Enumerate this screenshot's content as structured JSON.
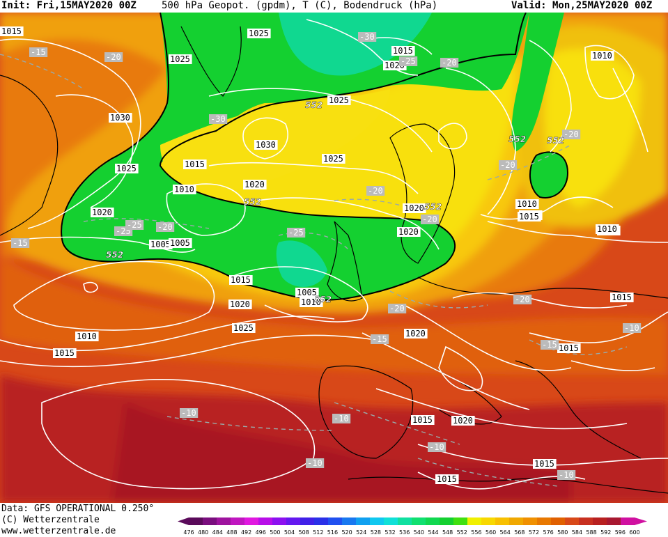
{
  "header": {
    "init": "Init: Fri,15MAY2020 00Z",
    "title": "500 hPa Geopot. (gpdm), T (C), Bodendruck (hPa)",
    "valid": "Valid: Mon,25MAY2020 00Z"
  },
  "footer": {
    "data_source": "Data: GFS OPERATIONAL 0.250°",
    "copyright": "(C) Wetterzentrale",
    "website": "www.wetterzentrale.de"
  },
  "legend": {
    "levels": [
      "476",
      "480",
      "484",
      "488",
      "492",
      "496",
      "500",
      "504",
      "508",
      "512",
      "516",
      "520",
      "524",
      "528",
      "532",
      "536",
      "540",
      "544",
      "548",
      "552",
      "556",
      "560",
      "564",
      "568",
      "572",
      "576",
      "580",
      "584",
      "588",
      "592",
      "596",
      "600"
    ],
    "colors": [
      "#5a0a5a",
      "#7a0e7e",
      "#9e139e",
      "#c016c0",
      "#e018e0",
      "#b80ee8",
      "#8c10f0",
      "#6418f0",
      "#4020e8",
      "#2a30e8",
      "#2050f0",
      "#1878f0",
      "#10a0f0",
      "#10c8f0",
      "#10e0d8",
      "#10e0a0",
      "#10e070",
      "#10d850",
      "#14d030",
      "#40e010",
      "#f0f000",
      "#f8d800",
      "#f8c000",
      "#f0a800",
      "#f09000",
      "#e87800",
      "#e06000",
      "#d84818",
      "#c83020",
      "#b82020",
      "#a81830",
      "#d010a0"
    ]
  },
  "map": {
    "colors": {
      "ocean_south": "#c83020",
      "deep_south": "#a81820",
      "orange": "#e06010",
      "light_orange": "#f09010",
      "yellow_orange": "#f0b010",
      "yellow": "#f8e010",
      "green": "#10d020",
      "teal": "#10d890",
      "contour": "#ffffff",
      "coast": "#000000"
    },
    "pressure_labels": [
      "1025",
      "1015",
      "1015",
      "1020",
      "1025",
      "1030",
      "1025",
      "1030",
      "1025",
      "1015",
      "1010",
      "1020",
      "1010",
      "1020",
      "1015",
      "1005",
      "1005",
      "1015",
      "1020",
      "1025",
      "1010",
      "1015",
      "1005",
      "1010",
      "1020",
      "1020",
      "1020",
      "1015",
      "1010",
      "1015",
      "1020",
      "1015",
      "1025",
      "1015",
      "1015",
      "1020",
      "1010",
      "1015"
    ],
    "temp_labels": [
      "-15",
      "-20",
      "-30",
      "-25",
      "-20",
      "-30",
      "-25",
      "-20",
      "-15",
      "-25",
      "-20",
      "-25",
      "-20",
      "-20",
      "-20",
      "-20",
      "-20",
      "-15",
      "-15",
      "-10",
      "-10",
      "-10",
      "-10",
      "-10",
      "-10"
    ],
    "height_labels": [
      "552",
      "552",
      "552",
      "552",
      "552",
      "552",
      "552"
    ]
  }
}
